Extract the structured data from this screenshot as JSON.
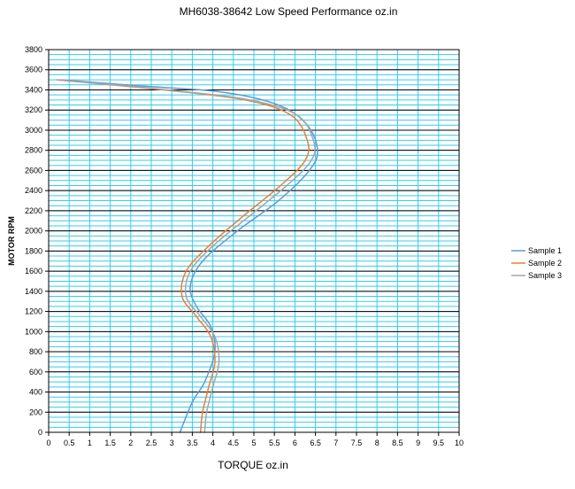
{
  "chart_data": {
    "type": "line",
    "title": "MH6038-38642     Low Speed Performance oz.in",
    "xlabel": "TORQUE  oz.in",
    "ylabel": "MOTOR RPM",
    "xlim": [
      0,
      10
    ],
    "ylim": [
      0,
      3800
    ],
    "x_ticks": [
      0,
      0.5,
      1,
      1.5,
      2,
      2.5,
      3,
      3.5,
      4,
      4.5,
      5,
      5.5,
      6,
      6.5,
      7,
      7.5,
      8,
      8.5,
      9,
      9.5,
      10
    ],
    "x_tick_labels": [
      "0",
      "0.5",
      "1",
      "1.5",
      "2",
      "2.5",
      "3",
      "3.5",
      "4",
      "4.5",
      "5",
      "5.5",
      "6",
      "6.5",
      "7",
      "7.5",
      "8",
      "8.5",
      "9",
      "9.5",
      "10"
    ],
    "y_ticks": [
      0,
      200,
      400,
      600,
      800,
      1000,
      1200,
      1400,
      1600,
      1800,
      2000,
      2200,
      2400,
      2600,
      2800,
      3000,
      3200,
      3400,
      3600,
      3800
    ],
    "y_tick_labels": [
      "0",
      "200",
      "400",
      "600",
      "800",
      "1000",
      "1200",
      "1400",
      "1600",
      "1800",
      "2000",
      "2200",
      "2400",
      "2600",
      "2800",
      "3000",
      "3200",
      "3400",
      "3600",
      "3800"
    ],
    "minor_y_step": 50,
    "grid": true,
    "legend_position": "right",
    "colors": {
      "plot_background": "#ffffff",
      "vertical_grid": "#33ccee",
      "minor_horizontal_grid": "#33ccee",
      "major_horizontal_grid": "#000000",
      "axis": "#000000"
    },
    "series": [
      {
        "name": "Sample 1",
        "color": "#5b9bd5",
        "points": [
          [
            3.2,
            0
          ],
          [
            3.5,
            300
          ],
          [
            3.8,
            500
          ],
          [
            4.05,
            800
          ],
          [
            3.95,
            1050
          ],
          [
            3.6,
            1250
          ],
          [
            3.45,
            1450
          ],
          [
            3.75,
            1700
          ],
          [
            4.6,
            2000
          ],
          [
            5.6,
            2300
          ],
          [
            6.35,
            2600
          ],
          [
            6.55,
            2800
          ],
          [
            6.3,
            3050
          ],
          [
            5.6,
            3250
          ],
          [
            4.2,
            3380
          ],
          [
            2.2,
            3440
          ],
          [
            0.3,
            3500
          ]
        ]
      },
      {
        "name": "Sample 2",
        "color": "#ed7d31",
        "points": [
          [
            3.7,
            0
          ],
          [
            3.75,
            200
          ],
          [
            3.9,
            450
          ],
          [
            4.05,
            700
          ],
          [
            3.95,
            950
          ],
          [
            3.6,
            1150
          ],
          [
            3.25,
            1350
          ],
          [
            3.35,
            1600
          ],
          [
            3.9,
            1850
          ],
          [
            4.75,
            2150
          ],
          [
            5.65,
            2450
          ],
          [
            6.25,
            2700
          ],
          [
            6.3,
            2900
          ],
          [
            5.9,
            3150
          ],
          [
            4.8,
            3300
          ],
          [
            2.8,
            3400
          ],
          [
            0.2,
            3500
          ]
        ]
      },
      {
        "name": "Sample 3",
        "color": "#a5a5a5",
        "points": [
          [
            3.8,
            0
          ],
          [
            3.85,
            200
          ],
          [
            4.0,
            450
          ],
          [
            4.15,
            700
          ],
          [
            4.05,
            950
          ],
          [
            3.7,
            1150
          ],
          [
            3.35,
            1350
          ],
          [
            3.45,
            1600
          ],
          [
            4.0,
            1850
          ],
          [
            4.9,
            2150
          ],
          [
            5.8,
            2450
          ],
          [
            6.4,
            2700
          ],
          [
            6.45,
            2900
          ],
          [
            6.05,
            3150
          ],
          [
            4.9,
            3300
          ],
          [
            2.9,
            3400
          ],
          [
            0.2,
            3500
          ]
        ]
      }
    ]
  }
}
